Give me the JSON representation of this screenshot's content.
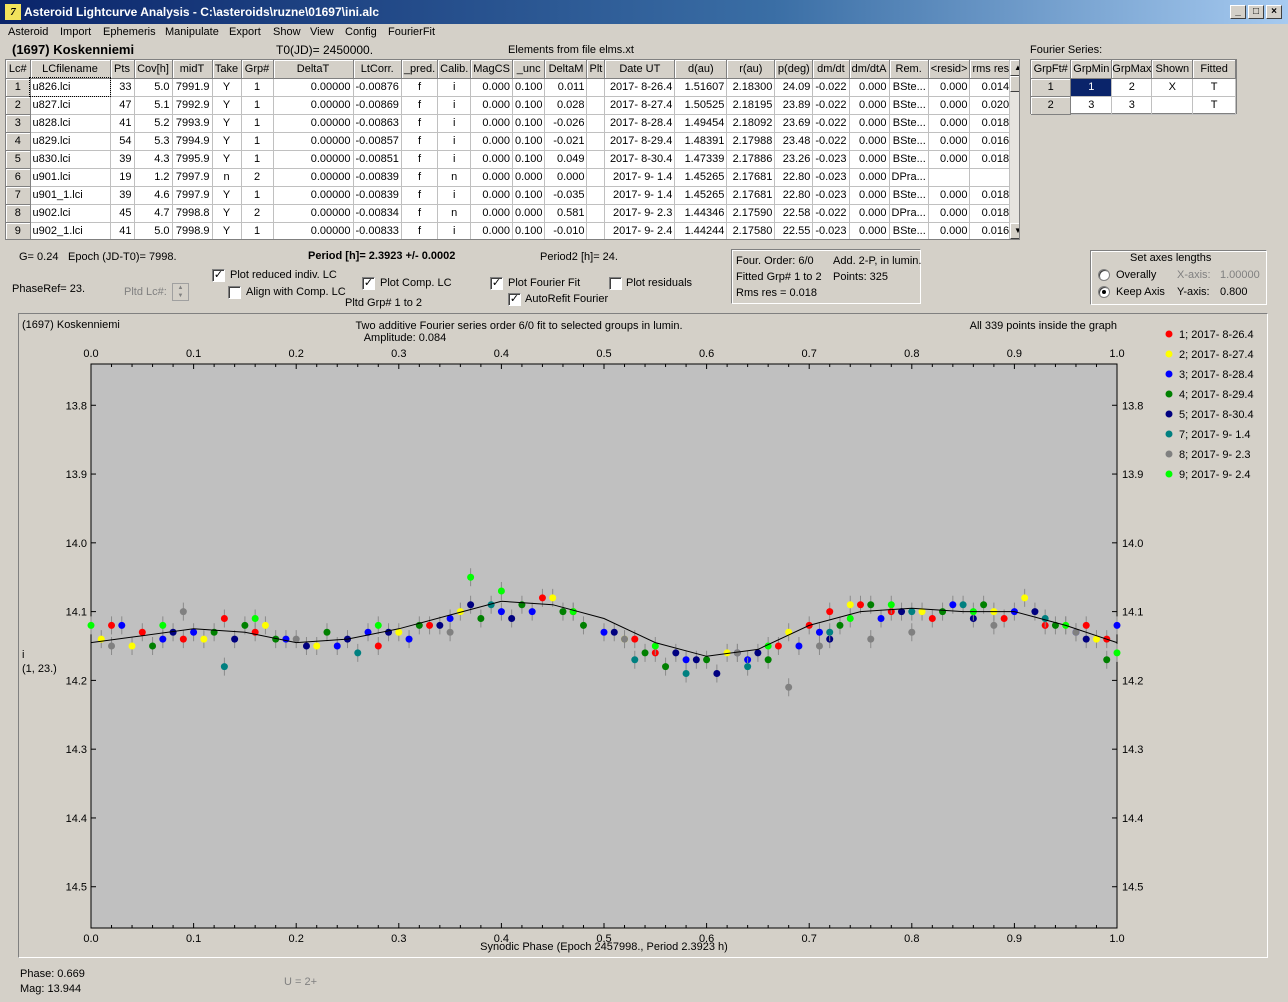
{
  "window": {
    "title": "Asteroid Lightcurve Analysis - C:\\asteroids\\ruzne\\01697\\ini.alc",
    "icon_letter": "7"
  },
  "menu": [
    "Asteroid",
    "Import",
    "Ephemeris",
    "Manipulate",
    "Export",
    "Show",
    "View",
    "Config",
    "FourierFit"
  ],
  "header": {
    "asteroid_name": "(1697) Koskenniemi",
    "t0": "T0(JD)= 2450000.",
    "elements": "Elements from file elms.xt",
    "fourier_series_label": "Fourier Series:"
  },
  "lc_table": {
    "columns": [
      "Lc#",
      "LCfilename",
      "Pts",
      "Cov[h]",
      "midT",
      "Take",
      "Grp#",
      "DeltaT",
      "LtCorr.",
      "_pred.",
      "Calib.",
      "MagCS",
      "_unc",
      "DeltaM",
      "Plt",
      "Date UT",
      "d(au)",
      "r(au)",
      "p(deg)",
      "dm/dt",
      "dm/dtA",
      "Rem.",
      "<resid>",
      "rms res"
    ],
    "rows": [
      [
        "1",
        "u826.lci",
        "33",
        "5.0",
        "7991.9",
        "Y",
        "1",
        "0.00000",
        "-0.00876",
        "f",
        "i",
        "0.000",
        "0.100",
        "0.011",
        "",
        "2017- 8-26.4",
        "1.51607",
        "2.18300",
        "24.09",
        "-0.022",
        "0.000",
        "BSte...",
        "0.000",
        "0.014"
      ],
      [
        "2",
        "u827.lci",
        "47",
        "5.1",
        "7992.9",
        "Y",
        "1",
        "0.00000",
        "-0.00869",
        "f",
        "i",
        "0.000",
        "0.100",
        "0.028",
        "",
        "2017- 8-27.4",
        "1.50525",
        "2.18195",
        "23.89",
        "-0.022",
        "0.000",
        "BSte...",
        "0.000",
        "0.020"
      ],
      [
        "3",
        "u828.lci",
        "41",
        "5.2",
        "7993.9",
        "Y",
        "1",
        "0.00000",
        "-0.00863",
        "f",
        "i",
        "0.000",
        "0.100",
        "-0.026",
        "",
        "2017- 8-28.4",
        "1.49454",
        "2.18092",
        "23.69",
        "-0.022",
        "0.000",
        "BSte...",
        "0.000",
        "0.018"
      ],
      [
        "4",
        "u829.lci",
        "54",
        "5.3",
        "7994.9",
        "Y",
        "1",
        "0.00000",
        "-0.00857",
        "f",
        "i",
        "0.000",
        "0.100",
        "-0.021",
        "",
        "2017- 8-29.4",
        "1.48391",
        "2.17988",
        "23.48",
        "-0.022",
        "0.000",
        "BSte...",
        "0.000",
        "0.016"
      ],
      [
        "5",
        "u830.lci",
        "39",
        "4.3",
        "7995.9",
        "Y",
        "1",
        "0.00000",
        "-0.00851",
        "f",
        "i",
        "0.000",
        "0.100",
        "0.049",
        "",
        "2017- 8-30.4",
        "1.47339",
        "2.17886",
        "23.26",
        "-0.023",
        "0.000",
        "BSte...",
        "0.000",
        "0.018"
      ],
      [
        "6",
        "u901.lci",
        "19",
        "1.2",
        "7997.9",
        "n",
        "2",
        "0.00000",
        "-0.00839",
        "f",
        "n",
        "0.000",
        "0.000",
        "0.000",
        "",
        "2017- 9- 1.4",
        "1.45265",
        "2.17681",
        "22.80",
        "-0.023",
        "0.000",
        "DPra...",
        "",
        ""
      ],
      [
        "7",
        "u901_1.lci",
        "39",
        "4.6",
        "7997.9",
        "Y",
        "1",
        "0.00000",
        "-0.00839",
        "f",
        "i",
        "0.000",
        "0.100",
        "-0.035",
        "",
        "2017- 9- 1.4",
        "1.45265",
        "2.17681",
        "22.80",
        "-0.023",
        "0.000",
        "BSte...",
        "0.000",
        "0.018"
      ],
      [
        "8",
        "u902.lci",
        "45",
        "4.7",
        "7998.8",
        "Y",
        "2",
        "0.00000",
        "-0.00834",
        "f",
        "n",
        "0.000",
        "0.000",
        "0.581",
        "",
        "2017- 9- 2.3",
        "1.44346",
        "2.17590",
        "22.58",
        "-0.022",
        "0.000",
        "DPra...",
        "0.000",
        "0.018"
      ],
      [
        "9",
        "u902_1.lci",
        "41",
        "5.0",
        "7998.9",
        "Y",
        "1",
        "0.00000",
        "-0.00833",
        "f",
        "i",
        "0.000",
        "0.100",
        "-0.010",
        "",
        "2017- 9- 2.4",
        "1.44244",
        "2.17580",
        "22.55",
        "-0.023",
        "0.000",
        "BSte...",
        "0.000",
        "0.016"
      ]
    ]
  },
  "fourier_table": {
    "columns": [
      "GrpFt#",
      "GrpMin",
      "GrpMax",
      "Shown",
      "Fitted"
    ],
    "rows": [
      [
        "1",
        "1",
        "2",
        "X",
        "T"
      ],
      [
        "2",
        "3",
        "3",
        "",
        "T"
      ]
    ]
  },
  "info": {
    "g": "G= 0.24",
    "epoch": "Epoch (JD-T0)= 7998.",
    "period": "Period [h]= 2.3923 +/- 0.0002",
    "period2": "Period2 [h]= 24.",
    "phaseref": "PhaseRef= 23.",
    "pltd_lc": "Pltd Lc#:",
    "pltd_grp": "Pltd Grp#  1   to   2"
  },
  "checkboxes": {
    "plot_reduced": {
      "label": "Plot reduced indiv. LC",
      "checked": true
    },
    "align_comp": {
      "label": "Align with Comp. LC",
      "checked": false
    },
    "plot_comp": {
      "label": "Plot Comp. LC",
      "checked": true
    },
    "plot_fourier": {
      "label": "Plot Fourier Fit",
      "checked": true
    },
    "autorefit": {
      "label": "AutoRefit Fourier",
      "checked": true
    },
    "plot_residuals": {
      "label": "Plot residuals",
      "checked": false
    }
  },
  "fit_box": {
    "order": "Four. Order:  6/0",
    "add": "Add. 2-P, in lumin.",
    "fitted": "Fitted Grp# 1 to 2",
    "points": "Points: 325",
    "rms": "Rms res      = 0.018"
  },
  "axes_box": {
    "title": "Set axes lengths",
    "overally": "Overally",
    "keep_axis": "Keep Axis",
    "x_axis_label": "X-axis:",
    "x_axis_value": "1.00000",
    "y_axis_label": "Y-axis:",
    "y_axis_value": "0.800",
    "selected": "keep_axis"
  },
  "plot": {
    "name": "(1697) Koskenniemi",
    "title": "Two additive Fourier series order 6/0 fit to selected groups in lumin.",
    "amplitude": "Amplitude: 0.084",
    "points_note": "All 339 points inside the graph",
    "ylabel_line1": "i",
    "ylabel_line2": "(1, 23.)",
    "xlabel": "Synodic Phase (Epoch 2457998., Period 2.3923 h)"
  },
  "status": {
    "phase": "Phase:  0.669",
    "mag": "Mag:    13.944",
    "u": "U = 2+"
  },
  "chart_data": {
    "type": "scatter",
    "xlim": [
      0,
      1
    ],
    "ylim": [
      14.56,
      13.72
    ],
    "y_inverted": true,
    "x_ticks": [
      "0.0",
      "0.1",
      "0.2",
      "0.3",
      "0.4",
      "0.5",
      "0.6",
      "0.7",
      "0.8",
      "0.9",
      "1.0"
    ],
    "y_ticks": [
      "13.8",
      "13.9",
      "14.0",
      "14.1",
      "14.2",
      "14.3",
      "14.4",
      "14.5"
    ],
    "legend_position": "right",
    "series": [
      {
        "name": "1; 2017- 8-26.4",
        "color": "#ff0000",
        "x": [
          0.02,
          0.05,
          0.09,
          0.13,
          0.16,
          0.28,
          0.33,
          0.44,
          0.47,
          0.53,
          0.55,
          0.67,
          0.7,
          0.72,
          0.75,
          0.78,
          0.82,
          0.89,
          0.93,
          0.97,
          0.99
        ],
        "y": [
          14.12,
          14.13,
          14.14,
          14.11,
          14.13,
          14.15,
          14.12,
          14.08,
          14.1,
          14.14,
          14.16,
          14.15,
          14.12,
          14.1,
          14.09,
          14.1,
          14.11,
          14.11,
          14.12,
          14.12,
          14.14
        ]
      },
      {
        "name": "2; 2017- 8-27.4",
        "color": "#ffff00",
        "x": [
          0.01,
          0.04,
          0.11,
          0.17,
          0.22,
          0.3,
          0.36,
          0.45,
          0.52,
          0.62,
          0.68,
          0.74,
          0.81,
          0.88,
          0.91,
          0.95,
          0.98
        ],
        "y": [
          14.14,
          14.15,
          14.14,
          14.12,
          14.15,
          14.13,
          14.1,
          14.08,
          14.14,
          14.16,
          14.13,
          14.09,
          14.1,
          14.1,
          14.08,
          14.12,
          14.14
        ]
      },
      {
        "name": "3; 2017- 8-28.4",
        "color": "#0000ff",
        "x": [
          0.03,
          0.07,
          0.1,
          0.19,
          0.24,
          0.27,
          0.31,
          0.35,
          0.4,
          0.43,
          0.5,
          0.58,
          0.64,
          0.69,
          0.71,
          0.77,
          0.84,
          0.9,
          0.96,
          1.0
        ],
        "y": [
          14.12,
          14.14,
          14.13,
          14.14,
          14.15,
          14.13,
          14.14,
          14.11,
          14.1,
          14.1,
          14.13,
          14.17,
          14.17,
          14.15,
          14.13,
          14.11,
          14.09,
          14.1,
          14.13,
          14.12
        ]
      },
      {
        "name": "4; 2017- 8-29.4",
        "color": "#008000",
        "x": [
          0.06,
          0.12,
          0.15,
          0.18,
          0.23,
          0.32,
          0.38,
          0.42,
          0.46,
          0.48,
          0.54,
          0.56,
          0.6,
          0.66,
          0.73,
          0.76,
          0.83,
          0.87,
          0.94,
          0.99
        ],
        "y": [
          14.15,
          14.13,
          14.12,
          14.14,
          14.13,
          14.12,
          14.11,
          14.09,
          14.1,
          14.12,
          14.16,
          14.18,
          14.17,
          14.17,
          14.12,
          14.09,
          14.1,
          14.09,
          14.12,
          14.17
        ]
      },
      {
        "name": "5; 2017- 8-30.4",
        "color": "#000080",
        "x": [
          0.08,
          0.14,
          0.21,
          0.25,
          0.29,
          0.34,
          0.37,
          0.41,
          0.51,
          0.57,
          0.59,
          0.61,
          0.63,
          0.65,
          0.72,
          0.79,
          0.86,
          0.92,
          0.97
        ],
        "y": [
          14.13,
          14.14,
          14.15,
          14.14,
          14.13,
          14.12,
          14.09,
          14.11,
          14.13,
          14.16,
          14.17,
          14.19,
          14.16,
          14.16,
          14.14,
          14.1,
          14.11,
          14.1,
          14.14
        ]
      },
      {
        "name": "7; 2017- 9- 1.4",
        "color": "#008080",
        "x": [
          0.13,
          0.26,
          0.39,
          0.53,
          0.58,
          0.64,
          0.72,
          0.8,
          0.85,
          0.93
        ],
        "y": [
          14.18,
          14.16,
          14.09,
          14.17,
          14.19,
          14.18,
          14.13,
          14.1,
          14.09,
          14.11
        ]
      },
      {
        "name": "8; 2017- 9- 2.3",
        "color": "#808080",
        "x": [
          0.02,
          0.09,
          0.2,
          0.35,
          0.52,
          0.63,
          0.68,
          0.71,
          0.76,
          0.8,
          0.88,
          0.96
        ],
        "y": [
          14.15,
          14.1,
          14.14,
          14.13,
          14.14,
          14.16,
          14.21,
          14.15,
          14.14,
          14.13,
          14.12,
          14.13
        ]
      },
      {
        "name": "9; 2017- 9- 2.4",
        "color": "#00ff00",
        "x": [
          0.0,
          0.07,
          0.16,
          0.28,
          0.37,
          0.4,
          0.47,
          0.55,
          0.66,
          0.74,
          0.78,
          0.86,
          0.95,
          1.0
        ],
        "y": [
          14.12,
          14.12,
          14.11,
          14.12,
          14.05,
          14.07,
          14.1,
          14.15,
          14.15,
          14.11,
          14.09,
          14.1,
          14.12,
          14.16
        ]
      }
    ],
    "fourier_curve": {
      "x": [
        0.0,
        0.05,
        0.1,
        0.15,
        0.2,
        0.25,
        0.3,
        0.35,
        0.4,
        0.45,
        0.5,
        0.55,
        0.6,
        0.65,
        0.7,
        0.75,
        0.8,
        0.85,
        0.9,
        0.95,
        1.0
      ],
      "y": [
        14.145,
        14.135,
        14.125,
        14.13,
        14.145,
        14.14,
        14.125,
        14.105,
        14.085,
        14.09,
        14.11,
        14.145,
        14.165,
        14.155,
        14.12,
        14.1,
        14.095,
        14.1,
        14.1,
        14.12,
        14.145
      ]
    }
  }
}
